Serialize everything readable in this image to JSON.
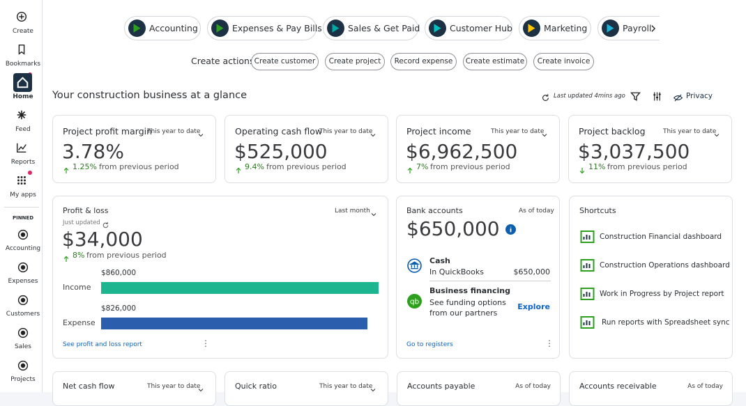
{
  "sidebar": {
    "items": [
      "Create",
      "Bookmarks",
      "Home",
      "Feed",
      "Reports",
      "My apps"
    ],
    "pinned_label": "PINNED",
    "pinned": [
      "Accounting",
      "Expenses",
      "Customers",
      "Sales",
      "Projects"
    ]
  },
  "tabs": [
    "Accounting",
    "Expenses & Pay Bills",
    "Sales & Get Paid",
    "Customer Hub",
    "Marketing",
    "Payroll"
  ],
  "create_actions": {
    "label": "Create actions",
    "buttons": [
      "Create customer",
      "Create project",
      "Record expense",
      "Create estimate",
      "Create invoice"
    ]
  },
  "glance": {
    "title": "Your construction business at a glance",
    "last_updated": "Last updated 4mins ago",
    "privacy": "Privacy"
  },
  "kpis": [
    {
      "title": "Project profit margin",
      "period": "This year to date",
      "value": "3.78%",
      "change": "1.25%",
      "direction": "up",
      "change_text": "from previous period"
    },
    {
      "title": "Operating cash flow",
      "period": "This year to date",
      "value": "$525,000",
      "change": "9.4%",
      "direction": "up",
      "change_text": "from previous period"
    },
    {
      "title": "Project income",
      "period": "This year to date",
      "value": "$6,962,500",
      "change": "7%",
      "direction": "up",
      "change_text": "from previous period"
    },
    {
      "title": "Project backlog",
      "period": "This year to date",
      "value": "$3,037,500",
      "change": "11%",
      "direction": "down",
      "change_text": "from previous period"
    }
  ],
  "profit_loss": {
    "title": "Profit & loss",
    "period": "Last month",
    "status": "Just updated",
    "value": "$34,000",
    "change": "8%",
    "change_text": "from previous period",
    "bars": [
      {
        "name": "Income",
        "value": 860000,
        "label": "$860,000",
        "color": "#1db58f"
      },
      {
        "name": "Expense",
        "value": 826000,
        "label": "$826,000",
        "color": "#2b5fae"
      }
    ],
    "link": "See profit and loss report"
  },
  "bank": {
    "title": "Bank accounts",
    "as_of": "As of today",
    "value": "$650,000",
    "cash": {
      "name": "Cash",
      "source": "In QuickBooks",
      "amount": "$650,000"
    },
    "financing": {
      "name": "Business financing",
      "text": "See funding options from our partners",
      "action": "Explore"
    },
    "link": "Go to registers"
  },
  "shortcuts": {
    "title": "Shortcuts",
    "items": [
      "Construction Financial dashboard",
      "Construction Operations dashboard",
      "Work in Progress by Project report",
      "Run reports with Spreadsheet sync"
    ]
  },
  "bottom_cards": [
    {
      "title": "Net cash flow",
      "period": "This year to date"
    },
    {
      "title": "Quick ratio",
      "period": "This year to date"
    },
    {
      "title": "Accounts payable",
      "period": "As of today"
    },
    {
      "title": "Accounts receivable",
      "period": "As of today"
    }
  ]
}
